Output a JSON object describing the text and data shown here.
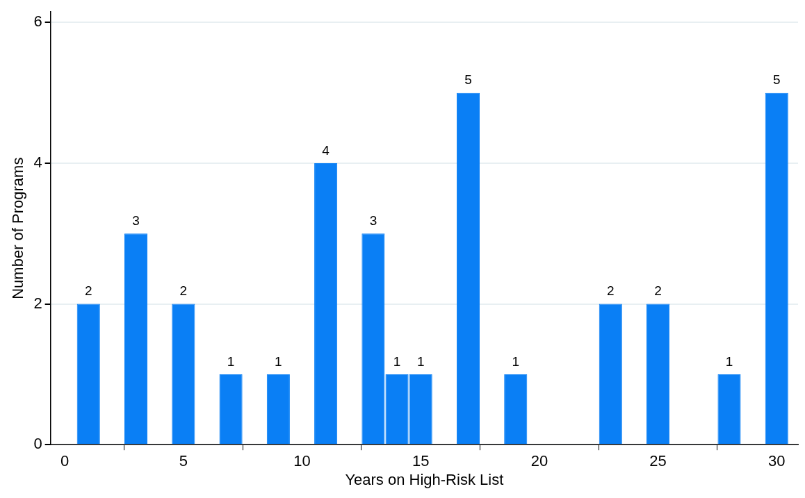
{
  "chart_data": {
    "type": "bar",
    "xlabel": "Years on High-Risk List",
    "ylabel": "Number of Programs",
    "x": [
      1,
      3,
      5,
      7,
      9,
      11,
      13,
      14,
      15,
      17,
      19,
      23,
      25,
      28,
      30
    ],
    "values": [
      2,
      3,
      2,
      1,
      1,
      4,
      3,
      1,
      1,
      5,
      1,
      2,
      2,
      1,
      5
    ],
    "data_labels": true,
    "color": "#0a7ff5",
    "xlim": [
      -0.6,
      30.9
    ],
    "xticks": [
      0,
      5,
      10,
      15,
      20,
      25,
      30
    ],
    "ylim": [
      0,
      6.15
    ],
    "yticks": [
      0,
      2,
      4,
      6
    ],
    "grid": "y",
    "legend": false
  }
}
